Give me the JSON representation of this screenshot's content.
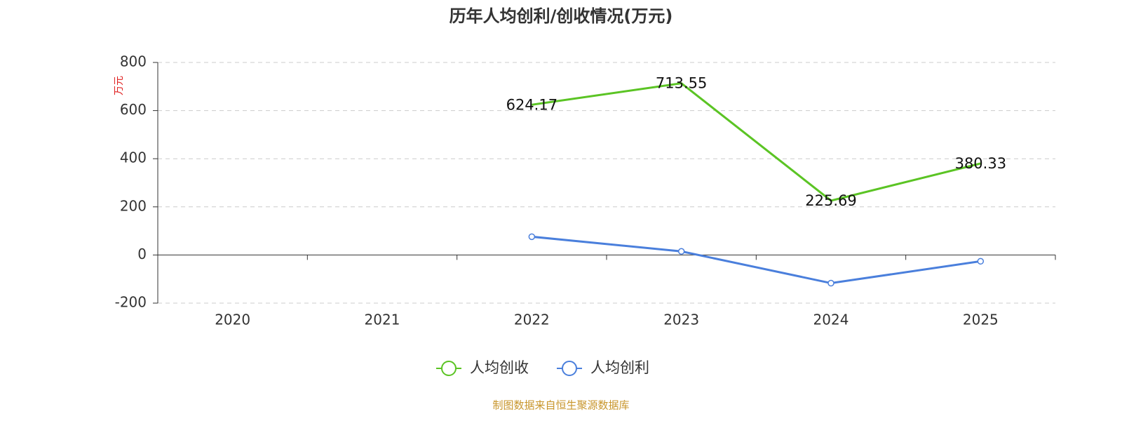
{
  "chart_data": {
    "type": "line",
    "title": "历年人均创利/创收情况(万元)",
    "y_label": "万元",
    "categories": [
      "2020",
      "2021",
      "2022",
      "2023",
      "2024",
      "2025"
    ],
    "series": [
      {
        "name": "人均创收",
        "color": "#5bc424",
        "markers": false,
        "data_labels": true,
        "values": [
          null,
          null,
          624.17,
          713.55,
          225.69,
          380.33
        ]
      },
      {
        "name": "人均创利",
        "color": "#4a7fdc",
        "markers": true,
        "data_labels": false,
        "values": [
          null,
          null,
          76,
          15,
          -117,
          -26
        ]
      }
    ],
    "ylim": [
      -200,
      800
    ],
    "yticks": [
      -200,
      0,
      200,
      400,
      600,
      800
    ],
    "grid": true,
    "source": "制图数据来自恒生聚源数据库"
  }
}
